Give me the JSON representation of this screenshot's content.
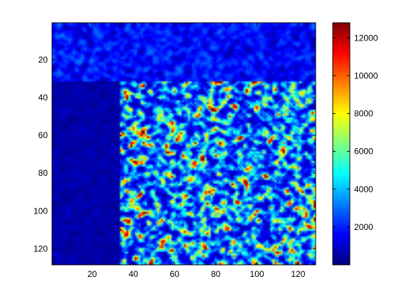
{
  "chart_data": [
    {
      "type": "heatmap",
      "title": "",
      "xlabel": "",
      "ylabel": "",
      "xlim": [
        0.5,
        128.5
      ],
      "ylim": [
        0.5,
        128.5
      ],
      "y_direction": "reversed",
      "x_ticks": [
        20,
        40,
        60,
        80,
        100,
        120
      ],
      "y_ticks": [
        20,
        40,
        60,
        80,
        100,
        120
      ],
      "colormap": "jet",
      "value_range": [
        0,
        12800
      ],
      "colorbar_ticks": [
        2000,
        4000,
        6000,
        8000,
        10000,
        12000
      ],
      "colorbar_position": "right",
      "grid": false,
      "matrix_size": [
        128,
        128
      ],
      "regions": [
        {
          "rows": [
            1,
            31
          ],
          "cols": [
            1,
            128
          ],
          "mean_value": 1000,
          "max_value": 3000
        },
        {
          "rows": [
            32,
            128
          ],
          "cols": [
            1,
            33
          ],
          "mean_value": 400,
          "max_value": 900
        },
        {
          "rows": [
            32,
            128
          ],
          "cols": [
            34,
            128
          ],
          "mean_value": 4500,
          "max_value": 12800
        }
      ]
    }
  ]
}
